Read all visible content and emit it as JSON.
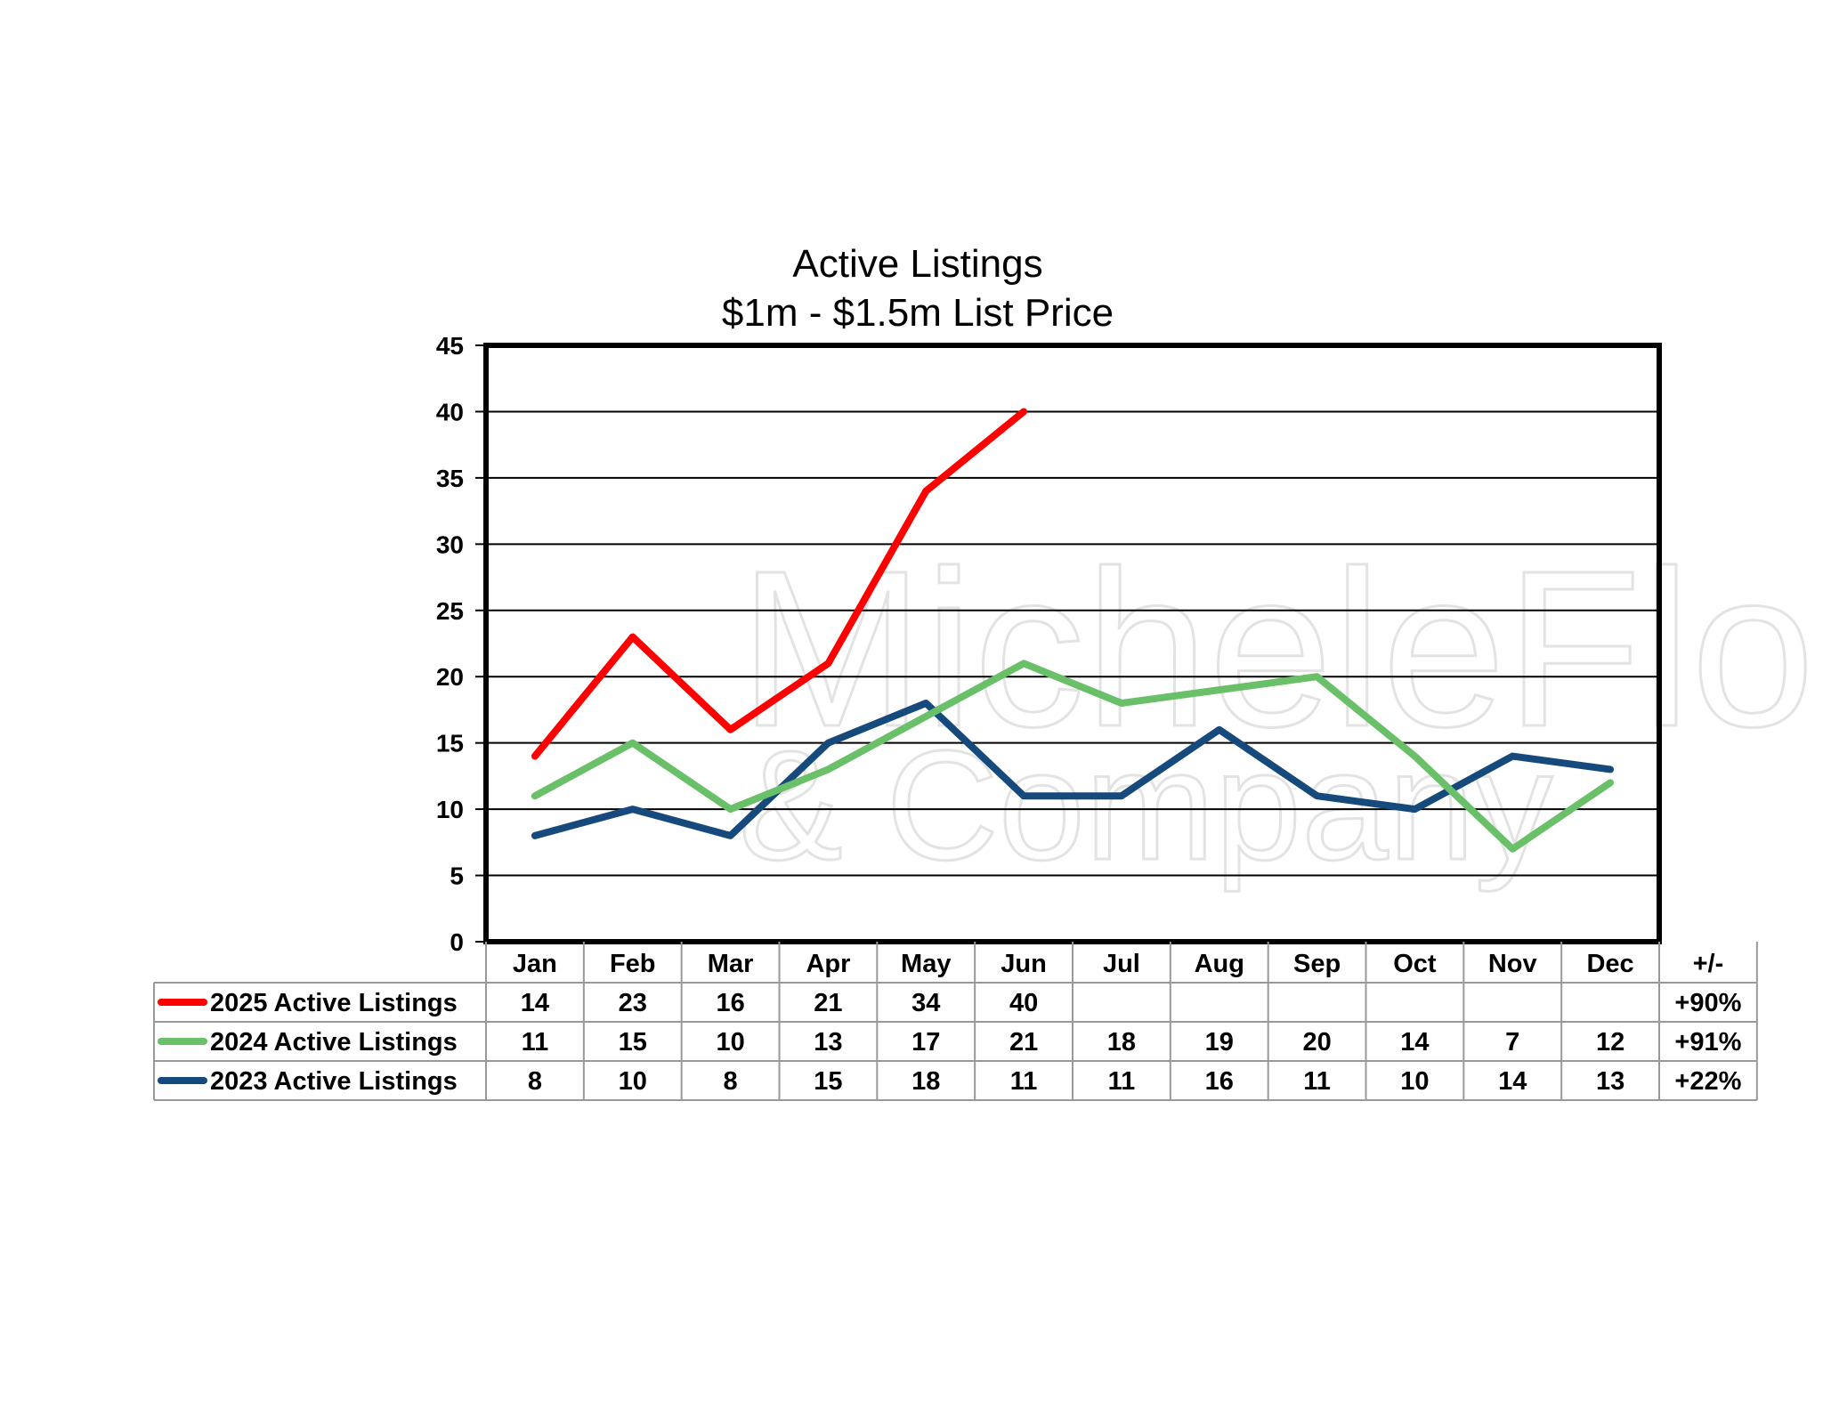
{
  "watermark": {
    "line1": "MicheleFlory",
    "line2": "& Company"
  },
  "chart_data": {
    "type": "line",
    "title": "Active Listings",
    "subtitle": "$1m - $1.5m List Price",
    "categories": [
      "Jan",
      "Feb",
      "Mar",
      "Apr",
      "May",
      "Jun",
      "Jul",
      "Aug",
      "Sep",
      "Oct",
      "Nov",
      "Dec"
    ],
    "ylim": [
      0,
      45
    ],
    "yticks": [
      0,
      5,
      10,
      15,
      20,
      25,
      30,
      35,
      40,
      45
    ],
    "grid": true,
    "change_header": "+/-",
    "series": [
      {
        "name": "2025 Active Listings",
        "color": "#ff0000",
        "values": [
          14,
          23,
          16,
          21,
          34,
          40,
          null,
          null,
          null,
          null,
          null,
          null
        ],
        "change": "+90%"
      },
      {
        "name": "2024 Active Listings",
        "color": "#6abf69",
        "values": [
          11,
          15,
          10,
          13,
          17,
          21,
          18,
          19,
          20,
          14,
          7,
          12
        ],
        "change": "+91%"
      },
      {
        "name": "2023 Active Listings",
        "color": "#174a7c",
        "values": [
          8,
          10,
          8,
          15,
          18,
          11,
          11,
          16,
          11,
          10,
          14,
          13
        ],
        "change": "+22%"
      }
    ]
  }
}
